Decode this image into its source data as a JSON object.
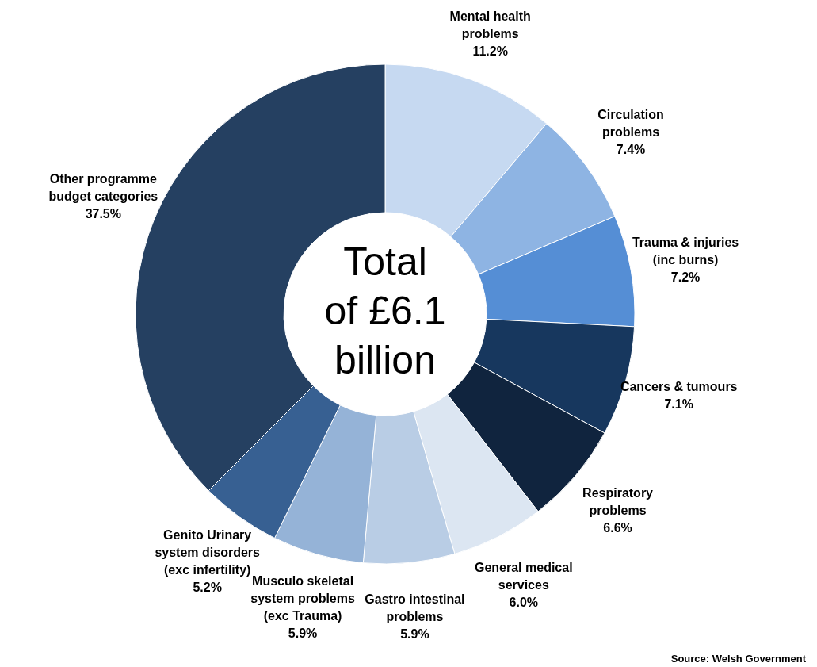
{
  "chart_data": {
    "type": "donut",
    "categories": [
      "Mental health problems",
      "Circulation problems",
      "Trauma & injuries (inc burns)",
      "Cancers & tumours",
      "Respiratory problems",
      "General medical services",
      "Gastro intestinal problems",
      "Musculo skeletal system problems (exc Trauma)",
      "Genito Urinary system disorders (exc infertility)",
      "Other programme budget categories"
    ],
    "values": [
      11.2,
      7.4,
      7.2,
      7.1,
      6.6,
      6.0,
      5.9,
      5.9,
      5.2,
      37.5
    ],
    "value_labels": [
      "11.2%",
      "7.4%",
      "7.2%",
      "7.1%",
      "6.6%",
      "6.0%",
      "5.9%",
      "5.9%",
      "5.2%",
      "37.5%"
    ],
    "colors": [
      "#c6d9f1",
      "#8eb4e3",
      "#558ed5",
      "#17375e",
      "#10243e",
      "#dce6f2",
      "#b9cde5",
      "#95b3d7",
      "#376092",
      "#254061"
    ],
    "annotations": [
      "Total of £6.1 billion",
      "Source: Welsh Government"
    ]
  }
}
